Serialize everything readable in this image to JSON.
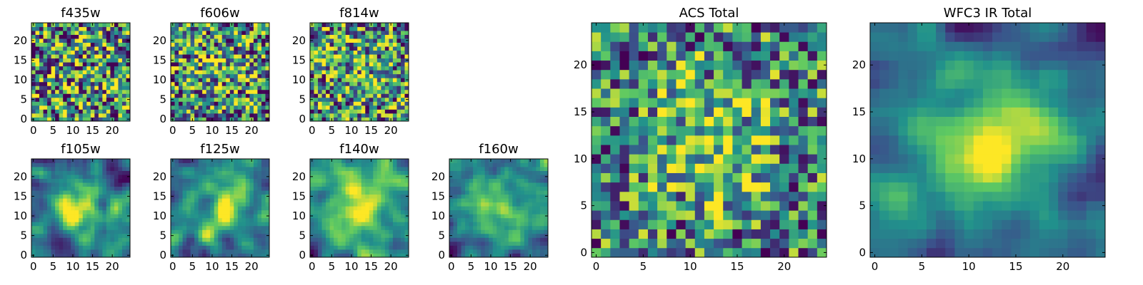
{
  "figure": {
    "colormap": "viridis",
    "colormap_colors": [
      "#440154",
      "#3b528b",
      "#21918c",
      "#5ec962",
      "#fde725"
    ]
  },
  "chart_data": [
    {
      "type": "heatmap",
      "title": "f435w",
      "grid_size": 25,
      "xlim": [
        0,
        24
      ],
      "ylim": [
        0,
        24
      ],
      "xticks": [
        0,
        5,
        10,
        15,
        20
      ],
      "yticks": [
        0,
        5,
        10,
        15,
        20
      ],
      "xtick_labels": [
        "0",
        "5",
        "10",
        "15",
        "20"
      ],
      "ytick_labels": [
        "0",
        "5",
        "10",
        "15",
        "20"
      ],
      "pattern": "noise",
      "noise_level": 0.9,
      "center_peak": 0.05,
      "seed": 11
    },
    {
      "type": "heatmap",
      "title": "f606w",
      "grid_size": 25,
      "xlim": [
        0,
        24
      ],
      "ylim": [
        0,
        24
      ],
      "xticks": [
        0,
        5,
        10,
        15,
        20
      ],
      "yticks": [
        0,
        5,
        10,
        15,
        20
      ],
      "xtick_labels": [
        "0",
        "5",
        "10",
        "15",
        "20"
      ],
      "ytick_labels": [
        "0",
        "5",
        "10",
        "15",
        "20"
      ],
      "pattern": "noise",
      "noise_level": 0.85,
      "center_peak": 0.15,
      "seed": 22
    },
    {
      "type": "heatmap",
      "title": "f814w",
      "grid_size": 25,
      "xlim": [
        0,
        24
      ],
      "ylim": [
        0,
        24
      ],
      "xticks": [
        0,
        5,
        10,
        15,
        20
      ],
      "yticks": [
        0,
        5,
        10,
        15,
        20
      ],
      "xtick_labels": [
        "0",
        "5",
        "10",
        "15",
        "20"
      ],
      "ytick_labels": [
        "0",
        "5",
        "10",
        "15",
        "20"
      ],
      "pattern": "noise",
      "noise_level": 0.8,
      "center_peak": 0.2,
      "seed": 33
    },
    {
      "type": "heatmap",
      "title": "f105w",
      "grid_size": 25,
      "xlim": [
        0,
        24
      ],
      "ylim": [
        0,
        24
      ],
      "xticks": [
        0,
        5,
        10,
        15,
        20
      ],
      "yticks": [
        0,
        5,
        10,
        15,
        20
      ],
      "xtick_labels": [
        "0",
        "5",
        "10",
        "15",
        "20"
      ],
      "ytick_labels": [
        "0",
        "5",
        "10",
        "15",
        "20"
      ],
      "pattern": "smooth",
      "noise_level": 0.55,
      "center_peak": 0.5,
      "seed": 44
    },
    {
      "type": "heatmap",
      "title": "f125w",
      "grid_size": 25,
      "xlim": [
        0,
        24
      ],
      "ylim": [
        0,
        24
      ],
      "xticks": [
        0,
        5,
        10,
        15,
        20
      ],
      "yticks": [
        0,
        5,
        10,
        15,
        20
      ],
      "xtick_labels": [
        "0",
        "5",
        "10",
        "15",
        "20"
      ],
      "ytick_labels": [
        "0",
        "5",
        "10",
        "15",
        "20"
      ],
      "pattern": "smooth",
      "noise_level": 0.6,
      "center_peak": 0.45,
      "seed": 55
    },
    {
      "type": "heatmap",
      "title": "f140w",
      "grid_size": 25,
      "xlim": [
        0,
        24
      ],
      "ylim": [
        0,
        24
      ],
      "xticks": [
        0,
        5,
        10,
        15,
        20
      ],
      "yticks": [
        0,
        5,
        10,
        15,
        20
      ],
      "xtick_labels": [
        "0",
        "5",
        "10",
        "15",
        "20"
      ],
      "ytick_labels": [
        "0",
        "5",
        "10",
        "15",
        "20"
      ],
      "pattern": "smooth",
      "noise_level": 0.6,
      "center_peak": 0.4,
      "seed": 66
    },
    {
      "type": "heatmap",
      "title": "f160w",
      "grid_size": 25,
      "xlim": [
        0,
        24
      ],
      "ylim": [
        0,
        24
      ],
      "xticks": [
        0,
        5,
        10,
        15,
        20
      ],
      "yticks": [
        0,
        5,
        10,
        15,
        20
      ],
      "xtick_labels": [
        "0",
        "5",
        "10",
        "15",
        "20"
      ],
      "ytick_labels": [
        "0",
        "5",
        "10",
        "15",
        "20"
      ],
      "pattern": "smooth",
      "noise_level": 0.6,
      "center_peak": 0.35,
      "seed": 77
    },
    {
      "type": "heatmap",
      "title": "ACS Total",
      "grid_size": 25,
      "xlim": [
        0,
        24
      ],
      "ylim": [
        0,
        24
      ],
      "xticks": [
        0,
        5,
        10,
        15,
        20
      ],
      "yticks": [
        0,
        5,
        10,
        15,
        20
      ],
      "xtick_labels": [
        "0",
        "5",
        "10",
        "15",
        "20"
      ],
      "ytick_labels": [
        "0",
        "5",
        "10",
        "15",
        "20"
      ],
      "pattern": "noise",
      "noise_level": 0.7,
      "center_peak": 0.35,
      "seed": 88
    },
    {
      "type": "heatmap",
      "title": "WFC3 IR Total",
      "grid_size": 25,
      "xlim": [
        0,
        24
      ],
      "ylim": [
        0,
        24
      ],
      "xticks": [
        0,
        5,
        10,
        15,
        20
      ],
      "yticks": [
        0,
        5,
        10,
        15,
        20
      ],
      "xtick_labels": [
        "0",
        "5",
        "10",
        "15",
        "20"
      ],
      "ytick_labels": [
        "0",
        "5",
        "10",
        "15",
        "20"
      ],
      "pattern": "smooth",
      "noise_level": 0.45,
      "center_peak": 0.65,
      "seed": 99
    }
  ]
}
